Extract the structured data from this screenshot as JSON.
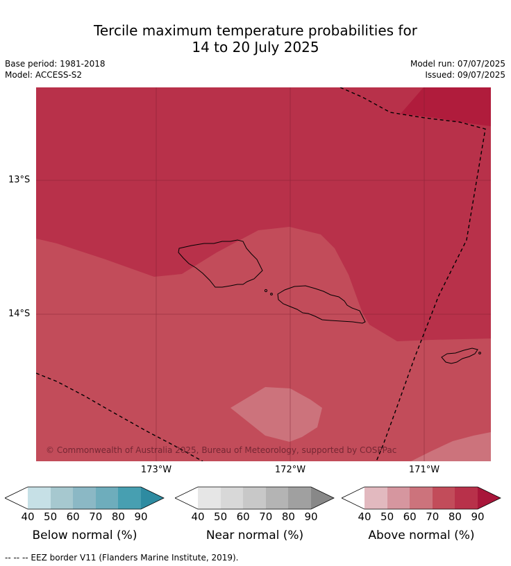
{
  "title_line1": "Tercile maximum temperature probabilities for",
  "title_line2": "14 to 20 July 2025",
  "base_period": "Base period: 1981-2018",
  "model": "Model: ACCESS-S2",
  "model_run": "Model run: 07/07/2025",
  "issued": "Issued: 09/07/2025",
  "copyright": "© Commonwealth of Australia 2025, Bureau of Meteorology, supported by COSPPac",
  "lat_labels": [
    "13°S",
    "14°S"
  ],
  "lon_labels": [
    "173°W",
    "172°W",
    "171°W"
  ],
  "colorbars": [
    {
      "label": "Below normal (%)",
      "ticks": [
        "40",
        "50",
        "60",
        "70",
        "80",
        "90"
      ],
      "colors": [
        "#ffffff",
        "#c6e0e6",
        "#a6c8cf",
        "#8bb8c5",
        "#6eadbc",
        "#479fb1",
        "#2e8ba1"
      ]
    },
    {
      "label": "Near normal (%)",
      "ticks": [
        "40",
        "50",
        "60",
        "70",
        "80",
        "90"
      ],
      "colors": [
        "#ffffff",
        "#e6e6e6",
        "#d8d8d8",
        "#c8c8c8",
        "#b4b4b4",
        "#a0a0a0",
        "#888888"
      ]
    },
    {
      "label": "Above normal (%)",
      "ticks": [
        "40",
        "50",
        "60",
        "70",
        "80",
        "90"
      ],
      "colors": [
        "#ffffff",
        "#e2b9bf",
        "#d6969f",
        "#cc737c",
        "#c24c5a",
        "#b8314a",
        "#a8163a"
      ]
    }
  ],
  "map_colors": {
    "c70": "#cc737c",
    "c80": "#c24c5a",
    "c90": "#b8314a",
    "c100": "#b01c3c"
  },
  "footer": "--  --  -- EEZ border V11 (Flanders Marine Institute, 2019)."
}
